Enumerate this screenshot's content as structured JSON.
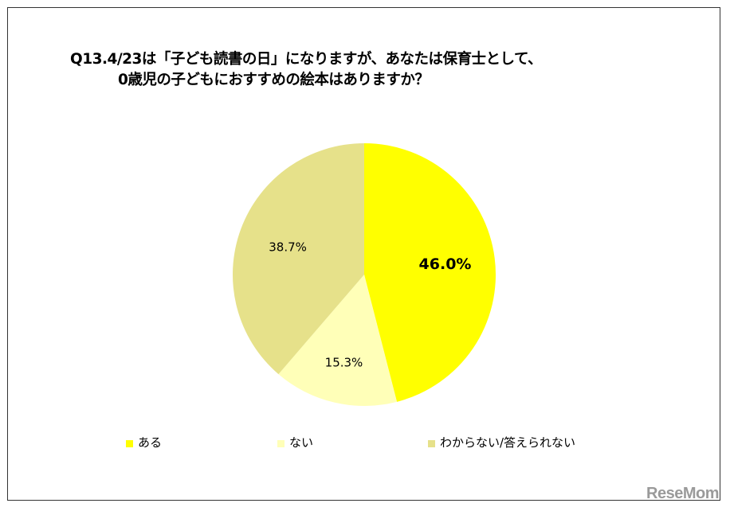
{
  "chart_data": {
    "type": "pie",
    "title_line1": "Q13.4/23は「子ども読書の日」になりますが、あなたは保育士として、",
    "title_line2": "0歳児の子どもにおすすめの絵本はありますか？",
    "categories": [
      "ある",
      "ない",
      "わからない/答えられない"
    ],
    "values": [
      46.0,
      15.3,
      38.7
    ],
    "labels": [
      "46.0%",
      "15.3%",
      "38.7%"
    ],
    "colors": [
      "#FFFF00",
      "#FFFFB8",
      "#E6E18A"
    ],
    "start_angle": "top",
    "direction": "clockwise",
    "legend_position": "bottom"
  },
  "watermark": "ReseMom"
}
